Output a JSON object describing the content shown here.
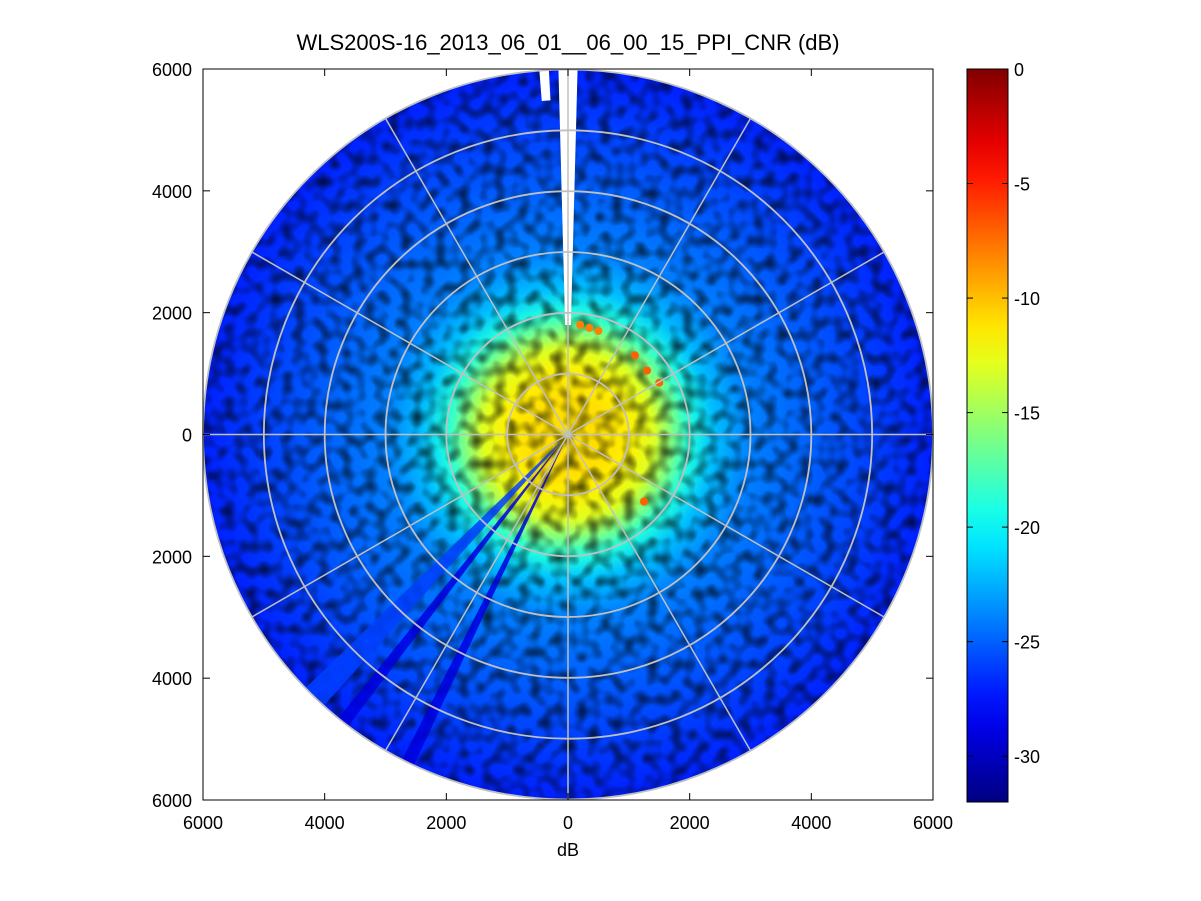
{
  "figure": {
    "title": "WLS200S-16_2013_06_01__06_00_15_PPI_CNR (dB)",
    "xlabel": "dB"
  },
  "chart_data": {
    "type": "heatmap",
    "subtype": "polar-ppi",
    "title": "WLS200S-16_2013_06_01__06_00_15_PPI_CNR (dB)",
    "xlabel": "dB",
    "ylabel": "",
    "xlim": [
      -6000,
      6000
    ],
    "ylim": [
      -6000,
      6000
    ],
    "x_ticks": [
      -6000,
      -4000,
      -2000,
      0,
      2000,
      4000,
      6000
    ],
    "x_tick_labels": [
      "6000",
      "4000",
      "2000",
      "0",
      "2000",
      "4000",
      "6000"
    ],
    "y_ticks": [
      6000,
      4000,
      2000,
      0,
      -2000,
      -4000,
      -6000
    ],
    "y_tick_labels": [
      "6000",
      "4000",
      "2000",
      "0",
      "2000",
      "4000",
      "6000"
    ],
    "max_range": 6000,
    "range_rings": [
      1000,
      2000,
      3000,
      4000,
      5000,
      6000
    ],
    "spokes_deg": [
      0,
      30,
      60,
      90,
      120,
      150,
      180,
      210,
      240,
      270,
      300,
      330
    ],
    "grid": true,
    "colormap": "jet",
    "clim": [
      -32,
      0
    ],
    "colorbar": {
      "ticks": [
        0,
        -5,
        -10,
        -15,
        -20,
        -25,
        -30
      ],
      "tick_labels": [
        "0",
        "-5",
        "-10",
        "-15",
        "-20",
        "-25",
        "-30"
      ]
    },
    "cnr_profile": {
      "range_m": [
        0,
        600,
        1000,
        1400,
        1700,
        2000,
        2400,
        3000,
        4000,
        5000,
        6000
      ],
      "cnr_db": [
        -11,
        -11,
        -11.5,
        -13,
        -16,
        -19,
        -22,
        -24,
        -25,
        -26,
        -27
      ]
    },
    "no_data_sectors": [
      {
        "from_deg": -1.5,
        "to_deg": 1.5,
        "from_range": 1800,
        "to_range": 6000
      },
      {
        "from_deg": -4.5,
        "to_deg": -3.0,
        "from_range": 5500,
        "to_range": 6000
      }
    ],
    "low_cnr_sectors": [
      {
        "from_deg": 205,
        "to_deg": 207,
        "from_range": 200,
        "to_range": 6000,
        "cnr_db": -29
      },
      {
        "from_deg": 217,
        "to_deg": 219,
        "from_range": 200,
        "to_range": 6000,
        "cnr_db": -29
      },
      {
        "from_deg": 222,
        "to_deg": 226,
        "from_range": 200,
        "to_range": 6000,
        "cnr_db": -26
      }
    ],
    "high_cnr_features": [
      {
        "x": 200,
        "y": 1800,
        "cnr_db": -8
      },
      {
        "x": 350,
        "y": 1750,
        "cnr_db": -8
      },
      {
        "x": 500,
        "y": 1700,
        "cnr_db": -8
      },
      {
        "x": 1100,
        "y": 1300,
        "cnr_db": -7
      },
      {
        "x": 1300,
        "y": 1050,
        "cnr_db": -7
      },
      {
        "x": 1500,
        "y": 850,
        "cnr_db": -7
      },
      {
        "x": 1250,
        "y": -1100,
        "cnr_db": -7
      }
    ],
    "grid_color": "#c0c0c0"
  }
}
